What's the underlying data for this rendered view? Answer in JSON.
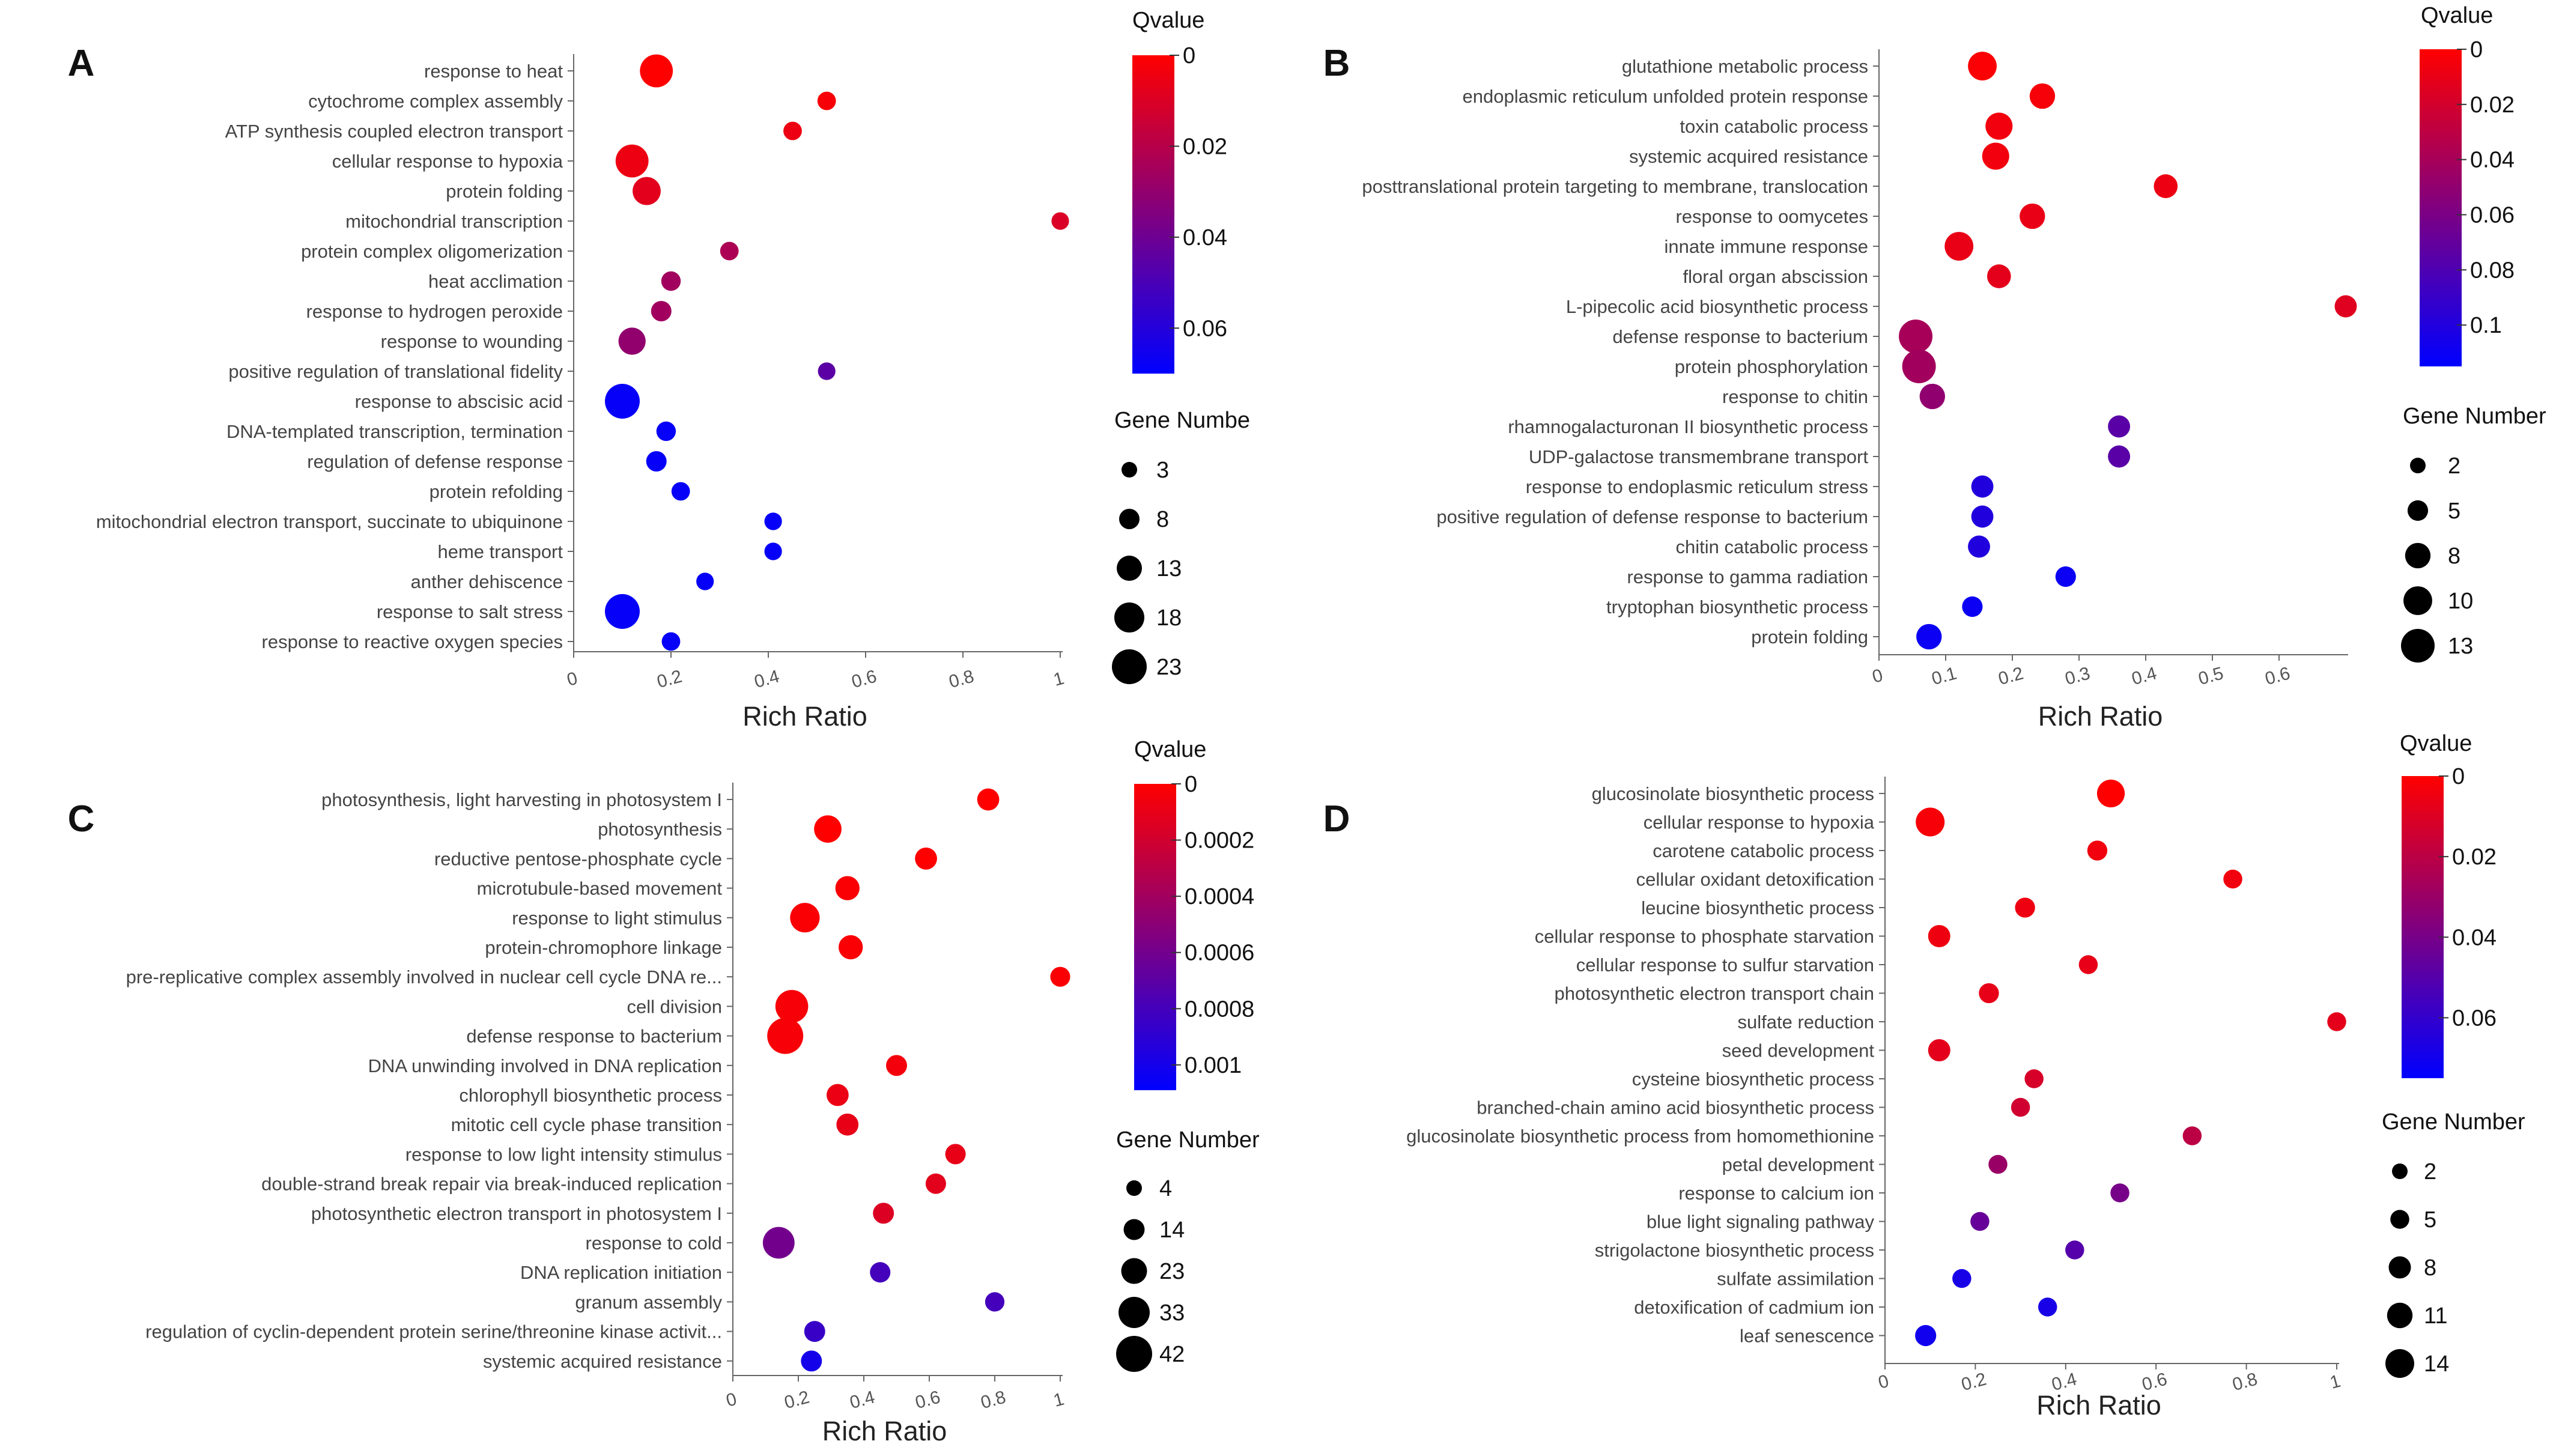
{
  "colors": {
    "high": "#ff0000",
    "low": "#0000ff"
  },
  "chart_data": [
    {
      "panel": "A",
      "type": "scatter",
      "xlabel": "Rich Ratio",
      "xlim": [
        0,
        1
      ],
      "xticks": [
        "0",
        "0.2",
        "0.4",
        "0.6",
        "0.8",
        "1"
      ],
      "xtick_values": [
        0,
        0.2,
        0.4,
        0.6,
        0.8,
        1
      ],
      "color_title": "Qvalue",
      "qmax": 0.07,
      "color_ticks": [
        "0",
        "0.02",
        "0.04",
        "0.06"
      ],
      "color_tick_values": [
        0,
        0.02,
        0.04,
        0.06
      ],
      "size_title": "Gene Numbe",
      "size_ticks": [
        "3",
        "8",
        "13",
        "18",
        "23"
      ],
      "size_tick_values": [
        3,
        8,
        13,
        18,
        23
      ],
      "terms": [
        {
          "label": "response to heat",
          "x": 0.17,
          "q": 0.0,
          "n": 21
        },
        {
          "label": "cytochrome complex assembly",
          "x": 0.52,
          "q": 0.002,
          "n": 6
        },
        {
          "label": "ATP synthesis coupled electron transport",
          "x": 0.45,
          "q": 0.005,
          "n": 6
        },
        {
          "label": "cellular response to hypoxia",
          "x": 0.12,
          "q": 0.005,
          "n": 21
        },
        {
          "label": "protein folding",
          "x": 0.15,
          "q": 0.008,
          "n": 16
        },
        {
          "label": "mitochondrial transcription",
          "x": 1.0,
          "q": 0.01,
          "n": 5
        },
        {
          "label": "protein complex oligomerization",
          "x": 0.32,
          "q": 0.023,
          "n": 6
        },
        {
          "label": "heat acclimation",
          "x": 0.2,
          "q": 0.026,
          "n": 7
        },
        {
          "label": "response to hydrogen peroxide",
          "x": 0.18,
          "q": 0.026,
          "n": 8
        },
        {
          "label": "response to wounding",
          "x": 0.12,
          "q": 0.03,
          "n": 15
        },
        {
          "label": "positive regulation of translational fidelity",
          "x": 0.52,
          "q": 0.045,
          "n": 5
        },
        {
          "label": "response to abscisic acid",
          "x": 0.1,
          "q": 0.068,
          "n": 23
        },
        {
          "label": "DNA-templated transcription, termination",
          "x": 0.19,
          "q": 0.068,
          "n": 7
        },
        {
          "label": "regulation of defense response",
          "x": 0.17,
          "q": 0.068,
          "n": 8
        },
        {
          "label": "protein refolding",
          "x": 0.22,
          "q": 0.068,
          "n": 6
        },
        {
          "label": "mitochondrial electron transport, succinate to ubiquinone",
          "x": 0.41,
          "q": 0.068,
          "n": 5
        },
        {
          "label": "heme transport",
          "x": 0.41,
          "q": 0.068,
          "n": 5
        },
        {
          "label": "anther dehiscence",
          "x": 0.27,
          "q": 0.068,
          "n": 5
        },
        {
          "label": "response to salt stress",
          "x": 0.1,
          "q": 0.068,
          "n": 23
        },
        {
          "label": "response to reactive oxygen species",
          "x": 0.2,
          "q": 0.068,
          "n": 6
        }
      ]
    },
    {
      "panel": "B",
      "type": "scatter",
      "xlabel": "Rich Ratio",
      "xlim": [
        0,
        0.7
      ],
      "xticks": [
        "0",
        "0.1",
        "0.2",
        "0.3",
        "0.4",
        "0.5",
        "0.6"
      ],
      "xtick_values": [
        0,
        0.1,
        0.2,
        0.3,
        0.4,
        0.5,
        0.6
      ],
      "color_title": "Qvalue",
      "qmax": 0.115,
      "color_ticks": [
        "0",
        "0.02",
        "0.04",
        "0.06",
        "0.08",
        "0.1"
      ],
      "color_tick_values": [
        0,
        0.02,
        0.04,
        0.06,
        0.08,
        0.1
      ],
      "size_title": "Gene Number",
      "size_ticks": [
        "2",
        "5",
        "8",
        "10",
        "13"
      ],
      "size_tick_values": [
        2,
        5,
        8,
        10,
        13
      ],
      "terms": [
        {
          "label": "glutathione metabolic process",
          "x": 0.155,
          "q": 0.002,
          "n": 10
        },
        {
          "label": "endoplasmic reticulum unfolded protein response",
          "x": 0.245,
          "q": 0.004,
          "n": 8
        },
        {
          "label": "toxin catabolic process",
          "x": 0.18,
          "q": 0.006,
          "n": 9
        },
        {
          "label": "systemic acquired resistance",
          "x": 0.175,
          "q": 0.006,
          "n": 9
        },
        {
          "label": "posttranslational protein targeting to membrane, translocation",
          "x": 0.43,
          "q": 0.008,
          "n": 7
        },
        {
          "label": "response to oomycetes",
          "x": 0.23,
          "q": 0.01,
          "n": 8
        },
        {
          "label": "innate immune response",
          "x": 0.12,
          "q": 0.01,
          "n": 10
        },
        {
          "label": "floral organ abscission",
          "x": 0.18,
          "q": 0.012,
          "n": 7
        },
        {
          "label": "L-pipecolic acid biosynthetic process",
          "x": 0.7,
          "q": 0.014,
          "n": 6
        },
        {
          "label": "defense response to bacterium",
          "x": 0.055,
          "q": 0.04,
          "n": 13
        },
        {
          "label": "protein phosphorylation",
          "x": 0.06,
          "q": 0.042,
          "n": 13
        },
        {
          "label": "response to chitin",
          "x": 0.08,
          "q": 0.05,
          "n": 8
        },
        {
          "label": "rhamnogalacturonan II biosynthetic process",
          "x": 0.36,
          "q": 0.075,
          "n": 6
        },
        {
          "label": "UDP-galactose transmembrane transport",
          "x": 0.36,
          "q": 0.075,
          "n": 6
        },
        {
          "label": "response to endoplasmic reticulum stress",
          "x": 0.155,
          "q": 0.1,
          "n": 6
        },
        {
          "label": "positive regulation of defense response to bacterium",
          "x": 0.155,
          "q": 0.1,
          "n": 6
        },
        {
          "label": "chitin catabolic process",
          "x": 0.15,
          "q": 0.1,
          "n": 6
        },
        {
          "label": "response to gamma radiation",
          "x": 0.28,
          "q": 0.11,
          "n": 5
        },
        {
          "label": "tryptophan biosynthetic process",
          "x": 0.14,
          "q": 0.11,
          "n": 5
        },
        {
          "label": "protein folding",
          "x": 0.075,
          "q": 0.11,
          "n": 8
        }
      ]
    },
    {
      "panel": "C",
      "type": "scatter",
      "xlabel": "Rich Ratio",
      "xlim": [
        0,
        1
      ],
      "xticks": [
        "0",
        "0.2",
        "0.4",
        "0.6",
        "0.8",
        "1"
      ],
      "xtick_values": [
        0,
        0.2,
        0.4,
        0.6,
        0.8,
        1
      ],
      "color_title": "Qvalue",
      "qmax": 0.00109,
      "color_ticks": [
        "0",
        "0.0002",
        "0.0004",
        "0.0006",
        "0.0008",
        "0.001"
      ],
      "color_tick_values": [
        0,
        0.0002,
        0.0004,
        0.0006,
        0.0008,
        0.001
      ],
      "size_title": "Gene Number",
      "size_ticks": [
        "4",
        "14",
        "23",
        "33",
        "42"
      ],
      "size_tick_values": [
        4,
        14,
        23,
        33,
        42
      ],
      "terms": [
        {
          "label": "photosynthesis, light harvesting in photosystem I",
          "x": 0.78,
          "q": 0.0,
          "n": 16
        },
        {
          "label": "photosynthesis",
          "x": 0.29,
          "q": 0.0,
          "n": 26
        },
        {
          "label": "reductive pentose-phosphate cycle",
          "x": 0.59,
          "q": 0.0,
          "n": 16
        },
        {
          "label": "microtubule-based movement",
          "x": 0.35,
          "q": 2e-05,
          "n": 20
        },
        {
          "label": "response to light stimulus",
          "x": 0.22,
          "q": 2e-05,
          "n": 30
        },
        {
          "label": "protein-chromophore linkage",
          "x": 0.36,
          "q": 2e-05,
          "n": 20
        },
        {
          "label": "pre-replicative complex assembly involved in nuclear cell cycle DNA re...",
          "x": 1.0,
          "q": 2e-05,
          "n": 12
        },
        {
          "label": "cell division",
          "x": 0.18,
          "q": 3e-05,
          "n": 36
        },
        {
          "label": "defense response to bacterium",
          "x": 0.16,
          "q": 3e-05,
          "n": 42
        },
        {
          "label": "DNA unwinding involved in DNA replication",
          "x": 0.5,
          "q": 5e-05,
          "n": 14
        },
        {
          "label": "chlorophyll biosynthetic process",
          "x": 0.32,
          "q": 8e-05,
          "n": 16
        },
        {
          "label": "mitotic cell cycle phase transition",
          "x": 0.35,
          "q": 0.0001,
          "n": 16
        },
        {
          "label": "response to low light intensity stimulus",
          "x": 0.68,
          "q": 0.0001,
          "n": 13
        },
        {
          "label": "double-strand break repair via break-induced replication",
          "x": 0.62,
          "q": 0.00012,
          "n": 13
        },
        {
          "label": "photosynthetic electron transport in photosystem I",
          "x": 0.46,
          "q": 0.00015,
          "n": 14
        },
        {
          "label": "response to cold",
          "x": 0.14,
          "q": 0.0006,
          "n": 34
        },
        {
          "label": "DNA replication initiation",
          "x": 0.45,
          "q": 0.0008,
          "n": 13
        },
        {
          "label": "granum assembly",
          "x": 0.8,
          "q": 0.0008,
          "n": 11
        },
        {
          "label": "regulation of cyclin-dependent protein serine/threonine kinase activit...",
          "x": 0.25,
          "q": 0.00085,
          "n": 14
        },
        {
          "label": "systemic acquired resistance",
          "x": 0.24,
          "q": 0.001,
          "n": 14
        }
      ]
    },
    {
      "panel": "D",
      "type": "scatter",
      "xlabel": "Rich Ratio",
      "xlim": [
        0,
        1
      ],
      "xticks": [
        "0",
        "0.2",
        "0.4",
        "0.6",
        "0.8",
        "1"
      ],
      "xtick_values": [
        0,
        0.2,
        0.4,
        0.6,
        0.8,
        1
      ],
      "color_title": "Qvalue",
      "qmax": 0.075,
      "color_ticks": [
        "0",
        "0.02",
        "0.04",
        "0.06"
      ],
      "color_tick_values": [
        0,
        0.02,
        0.04,
        0.06
      ],
      "size_title": "Gene Number",
      "size_ticks": [
        "2",
        "5",
        "8",
        "11",
        "14"
      ],
      "size_tick_values": [
        2,
        5,
        8,
        11,
        14
      ],
      "terms": [
        {
          "label": "glucosinolate biosynthetic process",
          "x": 0.5,
          "q": 0.0,
          "n": 13
        },
        {
          "label": "cellular response to hypoxia",
          "x": 0.1,
          "q": 0.002,
          "n": 14
        },
        {
          "label": "carotene catabolic process",
          "x": 0.47,
          "q": 0.004,
          "n": 6
        },
        {
          "label": "cellular oxidant detoxification",
          "x": 0.77,
          "q": 0.004,
          "n": 5
        },
        {
          "label": "leucine biosynthetic process",
          "x": 0.31,
          "q": 0.005,
          "n": 6
        },
        {
          "label": "cellular response to phosphate starvation",
          "x": 0.12,
          "q": 0.005,
          "n": 8
        },
        {
          "label": "cellular response to sulfur starvation",
          "x": 0.45,
          "q": 0.007,
          "n": 5
        },
        {
          "label": "photosynthetic electron transport chain",
          "x": 0.23,
          "q": 0.007,
          "n": 6
        },
        {
          "label": "sulfate reduction",
          "x": 1.0,
          "q": 0.008,
          "n": 5
        },
        {
          "label": "seed development",
          "x": 0.12,
          "q": 0.008,
          "n": 8
        },
        {
          "label": "cysteine biosynthetic process",
          "x": 0.33,
          "q": 0.012,
          "n": 5
        },
        {
          "label": "branched-chain amino acid biosynthetic process",
          "x": 0.3,
          "q": 0.014,
          "n": 5
        },
        {
          "label": "glucosinolate biosynthetic process from homomethionine",
          "x": 0.68,
          "q": 0.02,
          "n": 5
        },
        {
          "label": "petal development",
          "x": 0.25,
          "q": 0.03,
          "n": 5
        },
        {
          "label": "response to calcium ion",
          "x": 0.52,
          "q": 0.04,
          "n": 5
        },
        {
          "label": "blue light signaling pathway",
          "x": 0.21,
          "q": 0.045,
          "n": 5
        },
        {
          "label": "strigolactone biosynthetic process",
          "x": 0.42,
          "q": 0.05,
          "n": 5
        },
        {
          "label": "sulfate assimilation",
          "x": 0.17,
          "q": 0.068,
          "n": 5
        },
        {
          "label": "detoxification of cadmium ion",
          "x": 0.36,
          "q": 0.068,
          "n": 5
        },
        {
          "label": "leaf senescence",
          "x": 0.09,
          "q": 0.07,
          "n": 7
        }
      ]
    }
  ]
}
